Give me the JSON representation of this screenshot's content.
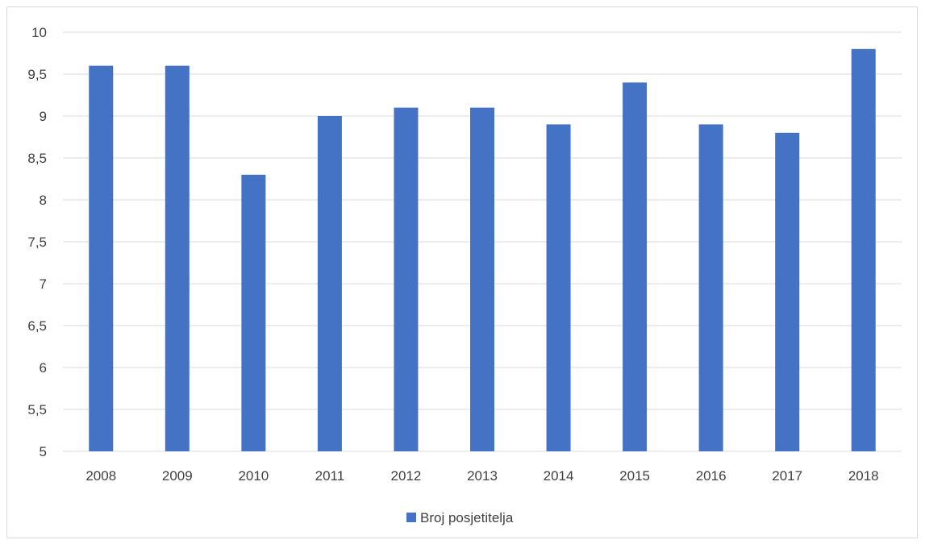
{
  "chart_data": {
    "type": "bar",
    "categories": [
      "2008",
      "2009",
      "2010",
      "2011",
      "2012",
      "2013",
      "2014",
      "2015",
      "2016",
      "2017",
      "2018"
    ],
    "series": [
      {
        "name": "Broj posjetitelja",
        "values": [
          9.6,
          9.6,
          8.3,
          9.0,
          9.1,
          9.1,
          8.9,
          9.4,
          8.9,
          8.8,
          9.8
        ],
        "color": "#4472c4"
      }
    ],
    "yticks": [
      "5",
      "5,5",
      "6",
      "6,5",
      "7",
      "7,5",
      "8",
      "8,5",
      "9",
      "9,5",
      "10"
    ],
    "ylim": [
      5,
      10
    ],
    "grid": true,
    "legend_position": "bottom"
  }
}
